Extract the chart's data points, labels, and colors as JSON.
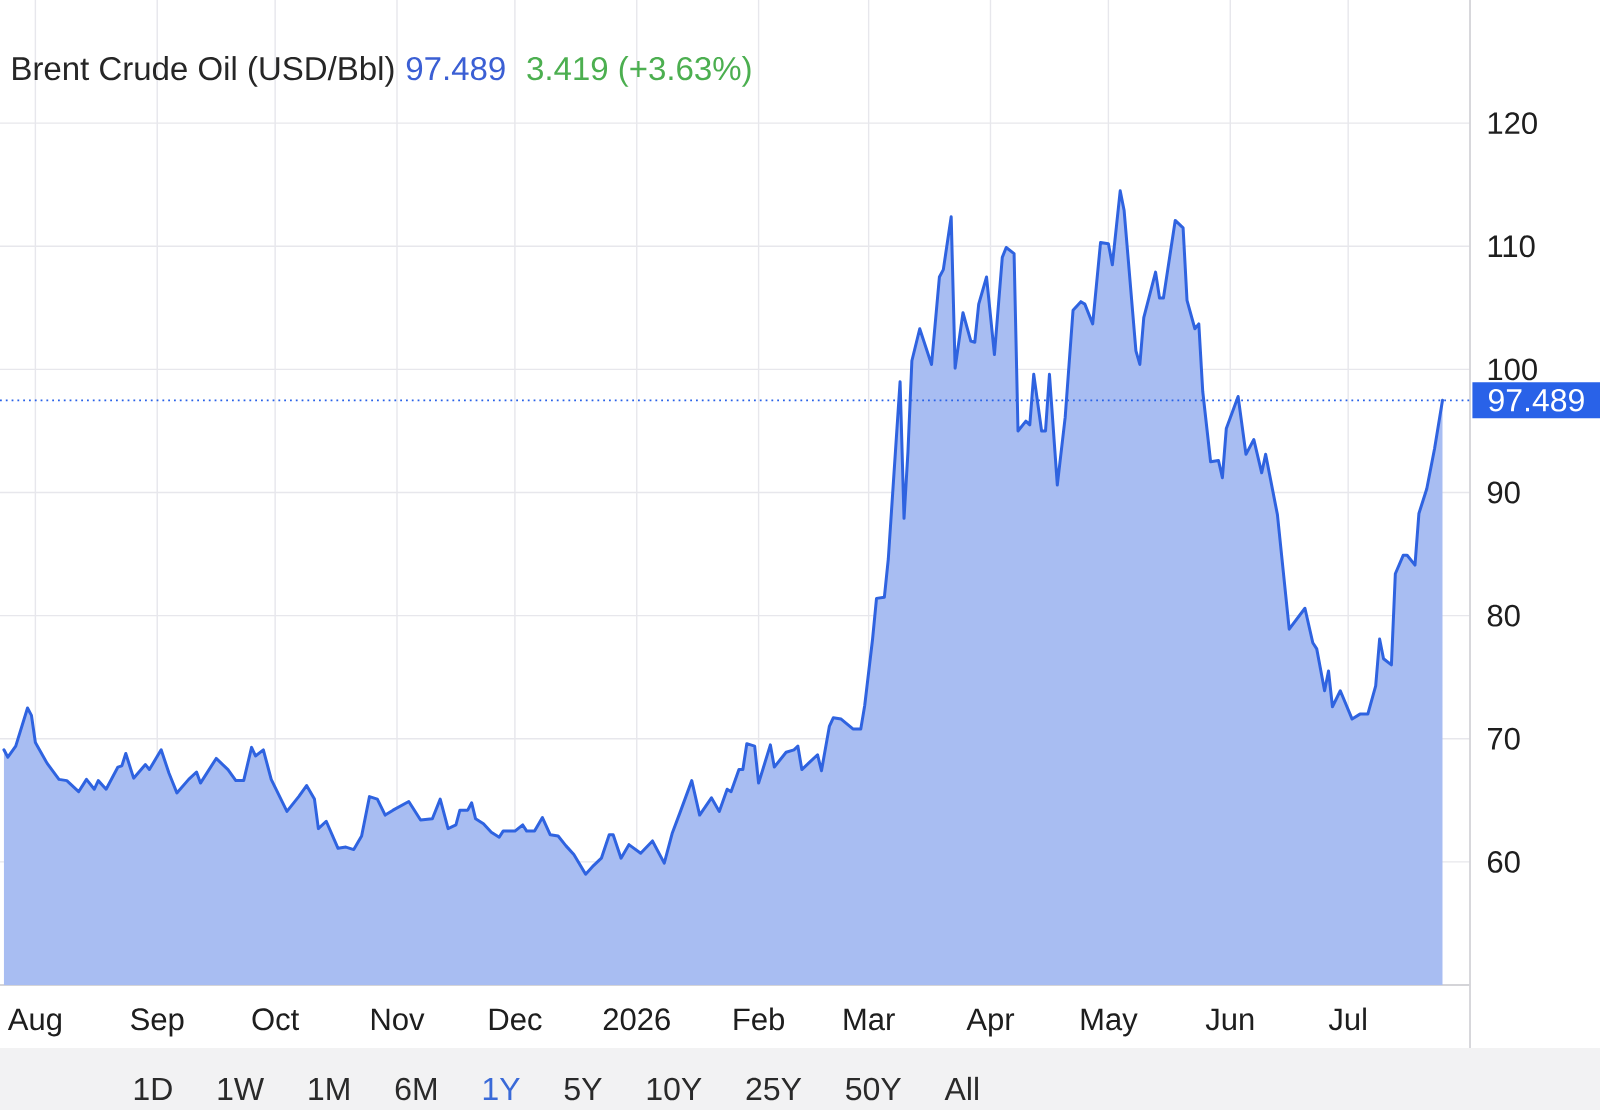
{
  "chart_data": {
    "type": "area",
    "title": "Brent Crude Oil (USD/Bbl)",
    "annotations": [
      "97.489",
      "3.419 (+3.63%)",
      "1D",
      "1W",
      "1M",
      "6M",
      "1Y",
      "5Y",
      "10Y",
      "25Y",
      "50Y",
      "All"
    ],
    "color": "#2f63e0",
    "x": [
      "2025-07-24",
      "2025-07-25",
      "2025-07-27",
      "2025-07-30",
      "2025-07-31",
      "2025-08-01",
      "2025-08-04",
      "2025-08-07",
      "2025-08-09",
      "2025-08-12",
      "2025-08-14",
      "2025-08-16",
      "2025-08-17",
      "2025-08-19",
      "2025-08-22",
      "2025-08-23",
      "2025-08-24",
      "2025-08-26",
      "2025-08-29",
      "2025-08-30",
      "2025-09-02",
      "2025-09-04",
      "2025-09-06",
      "2025-09-09",
      "2025-09-11",
      "2025-09-12",
      "2025-09-16",
      "2025-09-19",
      "2025-09-21",
      "2025-09-23",
      "2025-09-25",
      "2025-09-26",
      "2025-09-28",
      "2025-09-30",
      "2025-10-04",
      "2025-10-07",
      "2025-10-09",
      "2025-10-11",
      "2025-10-12",
      "2025-10-14",
      "2025-10-17",
      "2025-10-19",
      "2025-10-21",
      "2025-10-23",
      "2025-10-25",
      "2025-10-27",
      "2025-10-29",
      "2025-10-31",
      "2025-11-04",
      "2025-11-07",
      "2025-11-10",
      "2025-11-12",
      "2025-11-14",
      "2025-11-16",
      "2025-11-17",
      "2025-11-19",
      "2025-11-20",
      "2025-11-21",
      "2025-11-23",
      "2025-11-25",
      "2025-11-27",
      "2025-11-28",
      "2025-12-01",
      "2025-12-03",
      "2025-12-04",
      "2025-12-06",
      "2025-12-08",
      "2025-12-10",
      "2025-12-12",
      "2025-12-14",
      "2025-12-16",
      "2025-12-19",
      "2025-12-21",
      "2025-12-23",
      "2025-12-25",
      "2025-12-26",
      "2025-12-28",
      "2025-12-30",
      "2026-01-02",
      "2026-01-05",
      "2026-01-08",
      "2026-01-10",
      "2026-01-12",
      "2026-01-15",
      "2026-01-17",
      "2026-01-20",
      "2026-01-22",
      "2026-01-24",
      "2026-01-25",
      "2026-01-27",
      "2026-01-28",
      "2026-01-29",
      "2026-01-31",
      "2026-02-01",
      "2026-02-04",
      "2026-02-05",
      "2026-02-08",
      "2026-02-10",
      "2026-02-11",
      "2026-02-12",
      "2026-02-14",
      "2026-02-16",
      "2026-02-17",
      "2026-02-19",
      "2026-02-20",
      "2026-02-22",
      "2026-02-25",
      "2026-02-27",
      "2026-02-28",
      "2026-03-02",
      "2026-03-03",
      "2026-03-05",
      "2026-03-06",
      "2026-03-09",
      "2026-03-10",
      "2026-03-11",
      "2026-03-12",
      "2026-03-14",
      "2026-03-17",
      "2026-03-19",
      "2026-03-20",
      "2026-03-22",
      "2026-03-23",
      "2026-03-25",
      "2026-03-27",
      "2026-03-28",
      "2026-03-29",
      "2026-03-31",
      "2026-04-02",
      "2026-04-04",
      "2026-04-05",
      "2026-04-07",
      "2026-04-08",
      "2026-04-10",
      "2026-04-11",
      "2026-04-12",
      "2026-04-14",
      "2026-04-15",
      "2026-04-16",
      "2026-04-18",
      "2026-04-20",
      "2026-04-22",
      "2026-04-24",
      "2026-04-25",
      "2026-04-27",
      "2026-04-29",
      "2026-05-01",
      "2026-05-02",
      "2026-05-04",
      "2026-05-05",
      "2026-05-08",
      "2026-05-09",
      "2026-05-10",
      "2026-05-13",
      "2026-05-14",
      "2026-05-15",
      "2026-05-18",
      "2026-05-20",
      "2026-05-21",
      "2026-05-23",
      "2026-05-24",
      "2026-05-25",
      "2026-05-27",
      "2026-05-29",
      "2026-05-30",
      "2026-05-31",
      "2026-06-03",
      "2026-06-05",
      "2026-06-07",
      "2026-06-09",
      "2026-06-10",
      "2026-06-13",
      "2026-06-16",
      "2026-06-20",
      "2026-06-22",
      "2026-06-23",
      "2026-06-25",
      "2026-06-26",
      "2026-06-27",
      "2026-06-29",
      "2026-07-02",
      "2026-07-04",
      "2026-07-06",
      "2026-07-08",
      "2026-07-09",
      "2026-07-10",
      "2026-07-12",
      "2026-07-13",
      "2026-07-15",
      "2026-07-16",
      "2026-07-18",
      "2026-07-19",
      "2026-07-21",
      "2026-07-23",
      "2026-07-25"
    ],
    "values": [
      69.1,
      68.5,
      69.4,
      72.5,
      71.9,
      69.7,
      68.0,
      66.7,
      66.6,
      65.7,
      66.7,
      65.9,
      66.6,
      65.9,
      67.7,
      67.8,
      68.8,
      66.8,
      67.9,
      67.5,
      69.1,
      67.2,
      65.6,
      66.7,
      67.3,
      66.4,
      68.4,
      67.5,
      66.6,
      66.6,
      69.3,
      68.6,
      69.1,
      66.7,
      64.1,
      65.3,
      66.2,
      65.1,
      62.7,
      63.3,
      61.1,
      61.2,
      61.0,
      62.1,
      65.3,
      65.1,
      63.8,
      64.2,
      64.9,
      63.4,
      63.5,
      65.1,
      62.7,
      63.0,
      64.2,
      64.2,
      64.8,
      63.5,
      63.1,
      62.4,
      62.0,
      62.5,
      62.5,
      63.0,
      62.5,
      62.5,
      63.6,
      62.2,
      62.1,
      61.3,
      60.6,
      59.0,
      59.7,
      60.3,
      62.2,
      62.2,
      60.3,
      61.4,
      60.7,
      61.7,
      59.9,
      62.3,
      64.0,
      66.6,
      63.8,
      65.2,
      64.1,
      65.9,
      65.7,
      67.5,
      67.5,
      69.6,
      69.4,
      66.4,
      69.5,
      67.7,
      68.9,
      69.1,
      69.4,
      67.5,
      68.1,
      68.7,
      67.4,
      71.0,
      71.7,
      71.6,
      70.8,
      70.8,
      72.7,
      78.1,
      81.4,
      81.5,
      84.6,
      99.0,
      87.9,
      93.3,
      100.7,
      103.3,
      100.4,
      107.5,
      108.1,
      112.4,
      100.1,
      104.6,
      102.3,
      102.2,
      105.3,
      107.5,
      101.2,
      109.1,
      109.9,
      109.4,
      95.0,
      95.8,
      95.5,
      99.6,
      95.0,
      95.0,
      99.6,
      90.6,
      96.1,
      104.8,
      105.5,
      105.3,
      103.7,
      110.3,
      110.2,
      108.5,
      114.5,
      112.9,
      101.5,
      100.4,
      104.2,
      107.9,
      105.8,
      105.8,
      112.1,
      111.5,
      105.6,
      103.3,
      103.7,
      98.2,
      92.5,
      92.6,
      91.2,
      95.2,
      97.8,
      93.1,
      94.3,
      91.6,
      93.1,
      88.2,
      78.9,
      80.6,
      77.8,
      77.3,
      73.9,
      75.5,
      72.6,
      73.9,
      71.6,
      72.0,
      72.0,
      74.3,
      78.1,
      76.5,
      76.0,
      83.4,
      84.9,
      84.9,
      84.1,
      88.3,
      90.3,
      93.6,
      97.5
    ],
    "xlim": [
      "2025-07-23",
      "2026-08-01"
    ],
    "ylim": [
      50,
      130
    ],
    "xticks": [
      {
        "value": "2025-08-01",
        "label": "Aug"
      },
      {
        "value": "2025-09-01",
        "label": "Sep"
      },
      {
        "value": "2025-10-01",
        "label": "Oct"
      },
      {
        "value": "2025-11-01",
        "label": "Nov"
      },
      {
        "value": "2025-12-01",
        "label": "Dec"
      },
      {
        "value": "2026-01-01",
        "label": "2026"
      },
      {
        "value": "2026-02-01",
        "label": "Feb"
      },
      {
        "value": "2026-03-01",
        "label": "Mar"
      },
      {
        "value": "2026-04-01",
        "label": "Apr"
      },
      {
        "value": "2026-05-01",
        "label": "May"
      },
      {
        "value": "2026-06-01",
        "label": "Jun"
      },
      {
        "value": "2026-07-01",
        "label": "Jul"
      }
    ],
    "yticks": [
      60,
      70,
      80,
      90,
      100,
      110,
      120
    ],
    "grid": true,
    "ref_lines": [
      {
        "axis": "y",
        "value": 97.489,
        "label": "97.489",
        "color": "#2962e8",
        "line_style": "dotted"
      }
    ]
  }
}
